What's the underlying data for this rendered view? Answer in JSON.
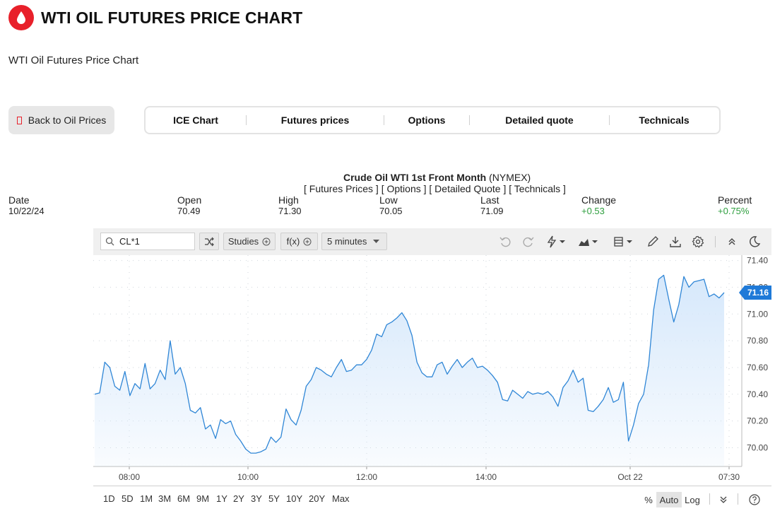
{
  "header": {
    "title": "WTI OIL FUTURES PRICE CHART",
    "subtitle": "WTI Oil Futures Price Chart",
    "brand_color": "#e8202a"
  },
  "back_button": {
    "label": "Back to Oil Prices"
  },
  "tabs": [
    {
      "label": "ICE Chart"
    },
    {
      "label": "Futures prices"
    },
    {
      "label": "Options"
    },
    {
      "label": "Detailed quote"
    },
    {
      "label": "Technicals"
    }
  ],
  "chart_header": {
    "title": "Crude Oil WTI 1st Front Month",
    "exchange": "(NYMEX)",
    "links": [
      "[ Futures Prices ]",
      "[ Options ]",
      "[ Detailed Quote ]",
      "[ Technicals ]"
    ]
  },
  "stats": {
    "date_label": "Date",
    "date": "10/22/24",
    "open_label": "Open",
    "open": "70.49",
    "high_label": "High",
    "high": "71.30",
    "low_label": "Low",
    "low": "70.05",
    "last_label": "Last",
    "last": "71.09",
    "change_label": "Change",
    "change": "+0.53",
    "percent_label": "Percent",
    "percent": "+0.75%"
  },
  "toolbar": {
    "symbol": "CL*1",
    "studies_label": "Studies",
    "fx_label": "f(x)",
    "interval_label": "5 minutes",
    "icons": [
      "search-icon",
      "shuffle-icon",
      "undo-icon",
      "redo-icon",
      "lightning-icon",
      "area-chart-icon",
      "layout-icon",
      "pencil-icon",
      "download-icon",
      "gear-icon",
      "collapse-icon",
      "moon-icon"
    ]
  },
  "chart_data": {
    "type": "area",
    "title": "",
    "xlabel": "",
    "ylabel": "",
    "ylim": [
      69.86,
      71.44
    ],
    "x_ticks": [
      "08:00",
      "10:00",
      "12:00",
      "14:00",
      "Oct 22",
      "07:30"
    ],
    "y_ticks": [
      "70.00",
      "70.20",
      "70.40",
      "70.60",
      "70.80",
      "71.00",
      "71.20",
      "71.40"
    ],
    "last_value": "71.16",
    "line_color": "#2f86d6",
    "fill_color": "#d6e8fb",
    "series": [
      {
        "values": [
          70.4,
          70.41,
          70.64,
          70.6,
          70.46,
          70.43,
          70.57,
          70.39,
          70.48,
          70.44,
          70.63,
          70.44,
          70.48,
          70.58,
          70.51,
          70.8,
          70.55,
          70.6,
          70.48,
          70.28,
          70.26,
          70.3,
          70.14,
          70.17,
          70.07,
          70.21,
          70.18,
          70.2,
          70.1,
          70.05,
          69.99,
          69.96,
          69.96,
          69.97,
          69.99,
          70.08,
          70.04,
          70.08,
          70.29,
          70.21,
          70.17,
          70.28,
          70.46,
          70.51,
          70.6,
          70.58,
          70.55,
          70.53,
          70.6,
          70.66,
          70.57,
          70.58,
          70.62,
          70.62,
          70.66,
          70.73,
          70.85,
          70.83,
          70.92,
          70.94,
          70.97,
          71.01,
          70.95,
          70.84,
          70.64,
          70.56,
          70.53,
          70.53,
          70.62,
          70.64,
          70.55,
          70.61,
          70.66,
          70.6,
          70.64,
          70.67,
          70.6,
          70.61,
          70.58,
          70.54,
          70.49,
          70.36,
          70.35,
          70.43,
          70.4,
          70.37,
          70.42,
          70.4,
          70.41,
          70.4,
          70.42,
          70.38,
          70.31,
          70.45,
          70.5,
          70.58,
          70.49,
          70.52,
          70.28,
          70.27,
          70.31,
          70.36,
          70.45,
          70.34,
          70.36,
          70.49,
          70.05,
          70.17,
          70.33,
          70.4,
          70.62,
          71.03,
          71.26,
          71.29,
          71.11,
          70.94,
          71.07,
          71.28,
          71.2,
          71.24,
          71.25,
          71.26,
          71.13,
          71.15,
          71.12,
          71.16
        ]
      }
    ]
  },
  "bottom_bar": {
    "ranges": [
      "1D",
      "5D",
      "1M",
      "3M",
      "6M",
      "9M",
      "1Y",
      "2Y",
      "3Y",
      "5Y",
      "10Y",
      "20Y",
      "Max"
    ],
    "percent_label": "%",
    "auto_label": "Auto",
    "log_label": "Log"
  }
}
